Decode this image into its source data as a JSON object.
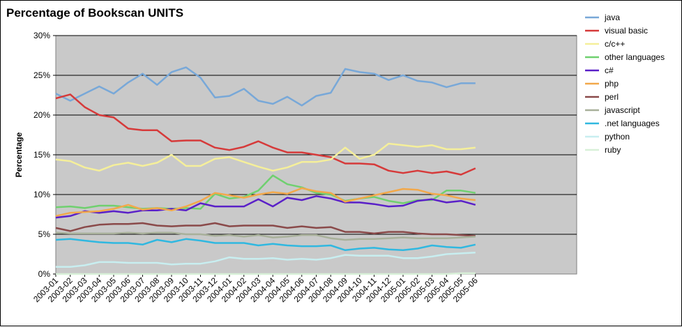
{
  "chart_data": {
    "type": "line",
    "title": "Percentage of Bookscan UNITS",
    "ylabel": "Percentage",
    "xlabel": "",
    "ylim": [
      0,
      30
    ],
    "y_tick_labels": [
      "0%",
      "5%",
      "10%",
      "15%",
      "20%",
      "25%",
      "30%"
    ],
    "y_ticks": [
      0,
      5,
      10,
      15,
      20,
      25,
      30
    ],
    "grid": true,
    "legend_position": "right",
    "x_tick_labels": [
      "2003-01",
      "2003-02",
      "2003-03",
      "2003-04",
      "2003-05",
      "2003-06",
      "2003-07",
      "2003-08",
      "2003-09",
      "2003-10",
      "2003-11",
      "2003-12",
      "2004-01",
      "2004-02",
      "2004-03",
      "2004-04",
      "2004-05",
      "2004-06",
      "2004-07",
      "2004-08",
      "2004-09",
      "2004-10",
      "2004-11",
      "2004-12",
      "2005-01",
      "2005-02",
      "2005-03",
      "2005-04",
      "2005-05",
      "2005-06"
    ],
    "n_points": 37,
    "series": [
      {
        "name": "java",
        "color": "#78a8d8",
        "values": [
          22.7,
          21.8,
          22.7,
          23.6,
          22.7,
          24.1,
          25.2,
          23.8,
          25.4,
          26.0,
          24.7,
          22.2,
          22.4,
          23.3,
          21.8,
          21.4,
          22.3,
          21.2,
          22.4,
          22.8,
          25.8,
          25.4,
          25.2,
          24.4,
          25.0,
          24.3,
          24.1,
          23.5,
          24.0,
          24.0,
          null,
          null,
          null,
          null,
          null,
          null,
          null
        ]
      },
      {
        "name": "visual basic",
        "color": "#d63a3a",
        "values": [
          22.1,
          22.6,
          21.0,
          20.0,
          19.7,
          18.3,
          18.1,
          18.1,
          16.7,
          16.8,
          16.8,
          15.9,
          15.6,
          16.0,
          16.7,
          15.9,
          15.3,
          15.3,
          15.0,
          14.7,
          13.9,
          13.9,
          13.8,
          13.0,
          12.7,
          13.0,
          12.7,
          12.9,
          12.5,
          13.3,
          null,
          null,
          null,
          null,
          null,
          null,
          null
        ]
      },
      {
        "name": "c/c++",
        "color": "#f5ef9a",
        "values": [
          14.4,
          14.2,
          13.4,
          13.0,
          13.7,
          14.0,
          13.6,
          14.0,
          15.0,
          13.6,
          13.6,
          14.5,
          14.7,
          14.1,
          13.5,
          13.0,
          13.4,
          14.1,
          14.1,
          14.4,
          15.9,
          14.5,
          15.0,
          16.4,
          16.2,
          16.0,
          16.2,
          15.7,
          15.7,
          15.9,
          null,
          null,
          null,
          null,
          null,
          null,
          null
        ]
      },
      {
        "name": "other languages",
        "color": "#6fd06f",
        "values": [
          8.4,
          8.5,
          8.3,
          8.6,
          8.6,
          8.4,
          8.2,
          8.3,
          8.2,
          8.3,
          8.2,
          10.1,
          9.5,
          9.7,
          10.5,
          12.4,
          11.3,
          10.9,
          10.2,
          10.0,
          9.2,
          9.5,
          9.7,
          9.2,
          8.9,
          9.3,
          9.3,
          10.5,
          10.5,
          10.2,
          null,
          null,
          null,
          null,
          null,
          null,
          null
        ]
      },
      {
        "name": "c#",
        "color": "#5a20c8",
        "values": [
          7.1,
          7.3,
          7.9,
          7.7,
          7.9,
          7.7,
          8.0,
          8.0,
          8.2,
          8.0,
          8.9,
          8.5,
          8.5,
          8.5,
          9.4,
          8.5,
          9.6,
          9.3,
          9.8,
          9.5,
          9.0,
          9.0,
          8.8,
          8.5,
          8.6,
          9.2,
          9.4,
          9.0,
          9.2,
          8.7,
          null,
          null,
          null,
          null,
          null,
          null,
          null
        ]
      },
      {
        "name": "php",
        "color": "#f2a84a",
        "values": [
          7.3,
          7.7,
          7.8,
          7.9,
          8.2,
          8.7,
          8.1,
          8.3,
          8.0,
          8.5,
          9.2,
          10.2,
          9.9,
          9.6,
          10.0,
          10.3,
          10.1,
          10.8,
          10.4,
          10.2,
          9.1,
          9.5,
          9.9,
          10.3,
          10.7,
          10.6,
          10.1,
          9.9,
          9.5,
          9.3,
          null,
          null,
          null,
          null,
          null,
          null,
          null
        ]
      },
      {
        "name": "perl",
        "color": "#8a4a4a",
        "values": [
          5.8,
          5.4,
          5.9,
          6.2,
          6.3,
          6.3,
          6.4,
          6.1,
          6.0,
          6.1,
          6.1,
          6.4,
          6.0,
          6.1,
          6.1,
          6.1,
          5.8,
          6.0,
          5.8,
          5.9,
          5.3,
          5.3,
          5.1,
          5.3,
          5.3,
          5.1,
          5.0,
          5.0,
          4.9,
          4.8,
          null,
          null,
          null,
          null,
          null,
          null,
          null
        ]
      },
      {
        "name": "javascript",
        "color": "#a8b09a",
        "values": [
          5.2,
          5.1,
          5.1,
          5.1,
          5.1,
          5.2,
          5.1,
          5.2,
          5.2,
          5.0,
          5.0,
          4.8,
          4.9,
          4.7,
          4.9,
          4.6,
          4.7,
          4.9,
          4.9,
          4.5,
          4.3,
          4.4,
          4.4,
          4.5,
          4.6,
          4.5,
          4.5,
          4.5,
          4.6,
          4.7,
          null,
          null,
          null,
          null,
          null,
          null,
          null
        ]
      },
      {
        "name": ".net languages",
        "color": "#30b8e0",
        "values": [
          4.3,
          4.4,
          4.2,
          4.0,
          3.9,
          3.9,
          3.7,
          4.3,
          4.0,
          4.4,
          4.2,
          3.9,
          3.9,
          3.9,
          3.6,
          3.8,
          3.6,
          3.5,
          3.5,
          3.6,
          3.0,
          3.2,
          3.3,
          3.1,
          3.0,
          3.2,
          3.6,
          3.4,
          3.3,
          3.7,
          null,
          null,
          null,
          null,
          null,
          null,
          null
        ]
      },
      {
        "name": "python",
        "color": "#c8eef0",
        "values": [
          0.9,
          0.9,
          1.1,
          1.5,
          1.5,
          1.4,
          1.4,
          1.4,
          1.2,
          1.3,
          1.3,
          1.6,
          2.1,
          1.9,
          1.9,
          2.0,
          1.8,
          1.9,
          1.8,
          2.0,
          2.4,
          2.3,
          2.3,
          2.3,
          2.0,
          2.0,
          2.2,
          2.5,
          2.6,
          2.7,
          null,
          null,
          null,
          null,
          null,
          null,
          null
        ]
      },
      {
        "name": "ruby",
        "color": "#d8f0d8",
        "values": [
          0.0,
          0.0,
          0.0,
          0.0,
          0.0,
          0.0,
          0.0,
          0.0,
          0.0,
          0.0,
          0.0,
          0.0,
          0.0,
          0.0,
          0.0,
          0.0,
          0.0,
          0.0,
          0.0,
          0.0,
          0.0,
          0.0,
          0.0,
          0.0,
          0.0,
          0.0,
          0.0,
          0.0,
          0.1,
          0.1,
          null,
          null,
          null,
          null,
          null,
          null,
          null
        ]
      }
    ]
  }
}
